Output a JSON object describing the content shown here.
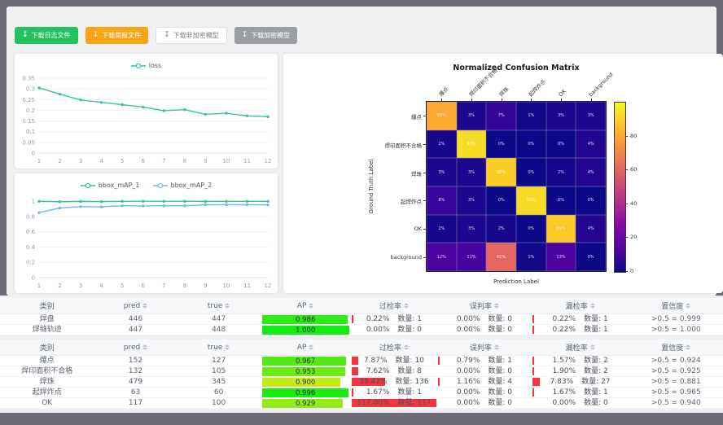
{
  "toolbar": {
    "buttons": [
      {
        "id": "download-log-file",
        "label": "下载日志文件",
        "variant": "green"
      },
      {
        "id": "download-brief-file",
        "label": "下载简报文件",
        "variant": "orange"
      },
      {
        "id": "download-plain-model",
        "label": "下载非加密模型",
        "variant": "plain"
      },
      {
        "id": "download-encrypted-model",
        "label": "下载加密模型",
        "variant": "gray"
      }
    ],
    "download_icon": "↧"
  },
  "colors": {
    "teal": "#34c3a8",
    "blue": "#6cb8f4",
    "bar_red": "#f5353f",
    "frame": "#6f6b78",
    "content_bg": "#f0f0f2"
  },
  "chart_data": [
    {
      "type": "line",
      "legend": [
        "loss"
      ],
      "x": [
        1,
        2,
        3,
        4,
        5,
        6,
        7,
        8,
        9,
        10,
        11,
        12
      ],
      "series": [
        {
          "name": "loss",
          "color": "#34c3a8",
          "values": [
            0.305,
            0.275,
            0.248,
            0.237,
            0.226,
            0.215,
            0.198,
            0.203,
            0.181,
            0.186,
            0.174,
            0.17
          ]
        }
      ],
      "yticks": [
        0,
        0.05,
        0.1,
        0.15,
        0.2,
        0.25,
        0.3,
        0.35
      ],
      "ylim": [
        0,
        0.35
      ],
      "grid": true,
      "legend_position": "top"
    },
    {
      "type": "line",
      "legend": [
        "bbox_mAP_1",
        "bbox_mAP_2"
      ],
      "x": [
        1,
        2,
        3,
        4,
        5,
        6,
        7,
        8,
        9,
        10,
        11,
        12
      ],
      "series": [
        {
          "name": "bbox_mAP_1",
          "color": "#34c3a8",
          "values": [
            0.997,
            0.992,
            0.996,
            0.993,
            0.997,
            0.998,
            0.998,
            0.998,
            0.996,
            0.997,
            0.997,
            0.997
          ]
        },
        {
          "name": "bbox_mAP_2",
          "color": "#6cb8f4",
          "values": [
            0.85,
            0.91,
            0.928,
            0.925,
            0.94,
            0.937,
            0.94,
            0.94,
            0.951,
            0.953,
            0.952,
            0.95
          ]
        }
      ],
      "yticks": [
        0,
        0.2,
        0.4,
        0.6,
        0.8,
        1
      ],
      "ylim": [
        0,
        1
      ],
      "grid": true,
      "legend_position": "top"
    },
    {
      "type": "heatmap",
      "title": "Normalized Confusion Matrix",
      "xlabel": "Prediction Label",
      "ylabel": "Ground Truth Label",
      "labels": [
        "爆点",
        "焊印面积不合格",
        "焊珠",
        "起焊炸点",
        "OK",
        "background"
      ],
      "matrix_pct": [
        [
          81,
          3,
          7,
          1,
          3,
          3
        ],
        [
          2,
          93,
          0,
          0,
          0,
          4
        ],
        [
          3,
          3,
          90,
          0,
          2,
          4
        ],
        [
          8,
          3,
          0,
          93,
          0,
          0
        ],
        [
          2,
          3,
          2,
          0,
          89,
          4
        ],
        [
          12,
          11,
          61,
          1,
          13,
          0
        ]
      ],
      "colormap": "plasma",
      "colorbar_ticks": [
        0,
        20,
        40,
        60,
        80
      ]
    }
  ],
  "tables": {
    "headers": [
      {
        "label": "类别",
        "sortable": false
      },
      {
        "label": "pred",
        "sortable": true
      },
      {
        "label": "true",
        "sortable": true
      },
      {
        "label": "AP",
        "sortable": true
      },
      {
        "label": "过检率",
        "sortable": true
      },
      {
        "label": "误判率",
        "sortable": true
      },
      {
        "label": "漏检率",
        "sortable": true
      },
      {
        "label": "置信度",
        "sortable": true
      }
    ],
    "count_prefix": "数量:",
    "groups": [
      {
        "rows": [
          {
            "name": "焊盘",
            "pred": "446",
            "true": "447",
            "ap": "0.986",
            "over": {
              "pct": "0.22%",
              "count": "1"
            },
            "mis": {
              "pct": "0.00%",
              "count": "0"
            },
            "miss": {
              "pct": "0.22%",
              "count": "1"
            },
            "conf": ">0.5 = 0.999"
          },
          {
            "name": "焊缝轨迹",
            "pred": "447",
            "true": "448",
            "ap": "1.000",
            "over": {
              "pct": "0.00%",
              "count": "0"
            },
            "mis": {
              "pct": "0.00%",
              "count": "0"
            },
            "miss": {
              "pct": "0.22%",
              "count": "1"
            },
            "conf": ">0.5 = 1.000"
          }
        ]
      },
      {
        "rows": [
          {
            "name": "爆点",
            "pred": "152",
            "true": "127",
            "ap": "0.967",
            "over": {
              "pct": "7.87%",
              "count": "10"
            },
            "mis": {
              "pct": "0.79%",
              "count": "1"
            },
            "miss": {
              "pct": "1.57%",
              "count": "2"
            },
            "conf": ">0.5 = 0.924"
          },
          {
            "name": "焊印面积不合格",
            "pred": "132",
            "true": "105",
            "ap": "0.953",
            "over": {
              "pct": "7.62%",
              "count": "8"
            },
            "mis": {
              "pct": "0.00%",
              "count": "0"
            },
            "miss": {
              "pct": "1.90%",
              "count": "2"
            },
            "conf": ">0.5 = 0.925"
          },
          {
            "name": "焊珠",
            "pred": "479",
            "true": "345",
            "ap": "0.900",
            "over": {
              "pct": "39.42%",
              "count": "136"
            },
            "mis": {
              "pct": "1.16%",
              "count": "4"
            },
            "miss": {
              "pct": "7.83%",
              "count": "27"
            },
            "conf": ">0.5 = 0.881"
          },
          {
            "name": "起焊炸点",
            "pred": "63",
            "true": "60",
            "ap": "0.996",
            "over": {
              "pct": "1.67%",
              "count": "1"
            },
            "mis": {
              "pct": "0.00%",
              "count": "0"
            },
            "miss": {
              "pct": "1.67%",
              "count": "1"
            },
            "conf": ">0.5 = 0.965"
          },
          {
            "name": "OK",
            "pred": "117",
            "true": "100",
            "ap": "0.929",
            "over": {
              "pct": "117.00%",
              "count": "117"
            },
            "mis": {
              "pct": "0.00%",
              "count": "0"
            },
            "miss": {
              "pct": "0.00%",
              "count": "0"
            },
            "conf": ">0.5 = 0.940"
          }
        ]
      }
    ]
  }
}
